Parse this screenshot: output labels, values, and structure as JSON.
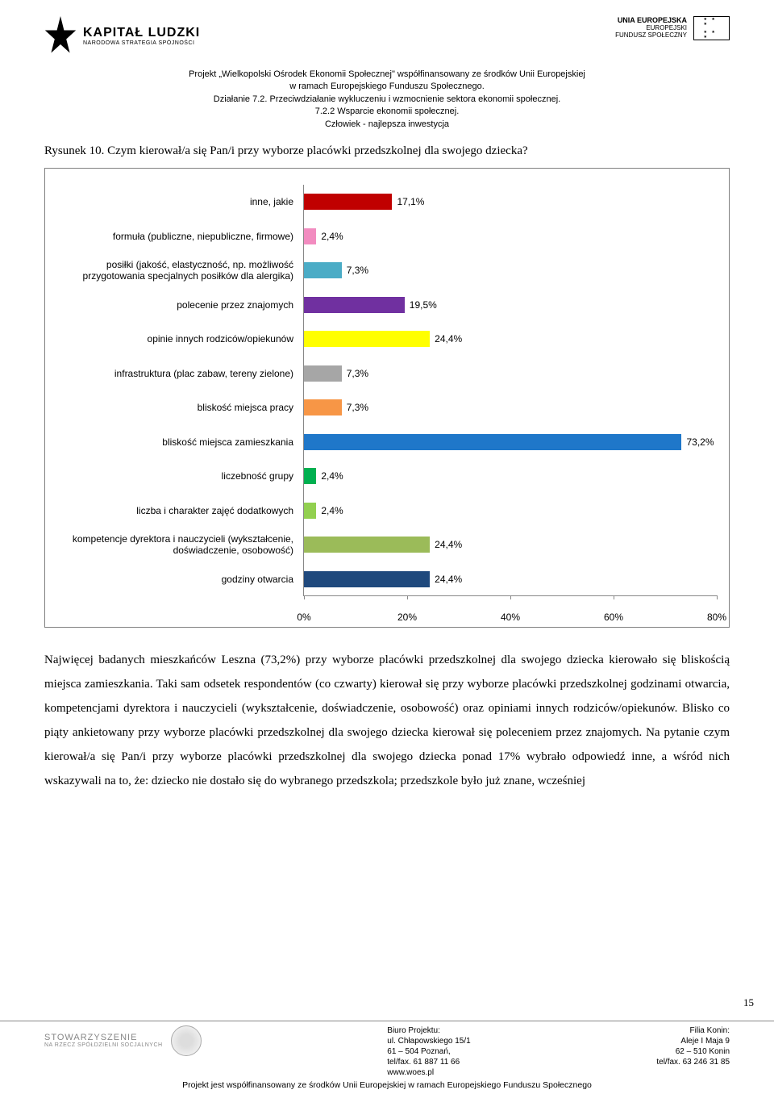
{
  "header": {
    "logo_left_title": "KAPITAŁ LUDZKI",
    "logo_left_sub": "NARODOWA STRATEGIA SPÓJNOŚCI",
    "logo_right_title": "UNIA EUROPEJSKA",
    "logo_right_sub1": "EUROPEJSKI",
    "logo_right_sub2": "FUNDUSZ SPOŁECZNY"
  },
  "project": {
    "line1": "Projekt „Wielkopolski Ośrodek Ekonomii Społecznej\" współfinansowany ze środków Unii Europejskiej",
    "line2": "w ramach Europejskiego Funduszu Społecznego.",
    "line3": "Działanie 7.2. Przeciwdziałanie wykluczeniu i wzmocnienie sektora ekonomii społecznej.",
    "line4": "7.2.2 Wsparcie ekonomii społecznej.",
    "line5": "Człowiek - najlepsza inwestycja"
  },
  "figure_title": "Rysunek 10. Czym kierował/a się Pan/i przy wyborze placówki przedszkolnej dla swojego dziecka?",
  "chart": {
    "type": "bar",
    "xmax": 80,
    "xticks": [
      "0%",
      "20%",
      "40%",
      "60%",
      "80%"
    ],
    "xtick_positions": [
      0,
      25,
      50,
      75,
      100
    ],
    "bars": [
      {
        "label": "inne, jakie",
        "value": 17.1,
        "value_label": "17,1%",
        "color": "#c00000"
      },
      {
        "label": "formuła (publiczne, niepubliczne, firmowe)",
        "value": 2.4,
        "value_label": "2,4%",
        "color": "#f28cc0"
      },
      {
        "label": "posiłki (jakość, elastyczność, np. możliwość przygotowania specjalnych posiłków dla alergika)",
        "value": 7.3,
        "value_label": "7,3%",
        "color": "#4bacc6"
      },
      {
        "label": "polecenie przez znajomych",
        "value": 19.5,
        "value_label": "19,5%",
        "color": "#7030a0"
      },
      {
        "label": "opinie innych rodziców/opiekunów",
        "value": 24.4,
        "value_label": "24,4%",
        "color": "#ffff00"
      },
      {
        "label": "infrastruktura (plac zabaw, tereny zielone)",
        "value": 7.3,
        "value_label": "7,3%",
        "color": "#a6a6a6"
      },
      {
        "label": "bliskość miejsca pracy",
        "value": 7.3,
        "value_label": "7,3%",
        "color": "#f79646"
      },
      {
        "label": "bliskość miejsca zamieszkania",
        "value": 73.2,
        "value_label": "73,2%",
        "color": "#1f77c9"
      },
      {
        "label": "liczebność grupy",
        "value": 2.4,
        "value_label": "2,4%",
        "color": "#00b050"
      },
      {
        "label": "liczba i charakter zajęć dodatkowych",
        "value": 2.4,
        "value_label": "2,4%",
        "color": "#92d050"
      },
      {
        "label": "kompetencje dyrektora i nauczycieli (wykształcenie, doświadczenie, osobowość)",
        "value": 24.4,
        "value_label": "24,4%",
        "color": "#9bbb59"
      },
      {
        "label": "godziny otwarcia",
        "value": 24.4,
        "value_label": "24,4%",
        "color": "#1f497d"
      }
    ]
  },
  "body": "Najwięcej badanych mieszkańców Leszna (73,2%) przy wyborze placówki przedszkolnej dla swojego dziecka kierowało się bliskością miejsca zamieszkania. Taki sam odsetek respondentów (co czwarty) kierował się przy wyborze placówki przedszkolnej godzinami otwarcia, kompetencjami dyrektora i nauczycieli (wykształcenie, doświadczenie, osobowość) oraz opiniami innych rodziców/opiekunów. Blisko co piąty ankietowany przy wyborze placówki przedszkolnej dla swojego dziecka kierował się poleceniem przez znajomych. Na pytanie czym kierował/a się Pan/i przy wyborze placówki przedszkolnej dla swojego dziecka ponad 17% wybrało odpowiedź inne, a wśród nich wskazywali na to, że: dziecko nie dostało się do wybranego przedszkola; przedszkole było już znane, wcześniej",
  "page_number": "15",
  "footer": {
    "logo_title": "STOWARZYSZENIE",
    "logo_sub": "NA RZECZ SPÓŁDZIELNI SOCJALNYCH",
    "mid_title": "Biuro Projektu:",
    "mid_l1": "ul. Chłapowskiego 15/1",
    "mid_l2": "61 – 504 Poznań,",
    "mid_l3": "tel/fax. 61 887 11 66",
    "mid_l4": "www.woes.pl",
    "right_title": "Filia Konin:",
    "right_l1": "Aleje I Maja 9",
    "right_l2": "62 – 510 Konin",
    "right_l3": "tel/fax. 63 246 31 85",
    "bottom": "Projekt jest współfinansowany ze środków Unii Europejskiej w ramach Europejskiego Funduszu Społecznego"
  }
}
